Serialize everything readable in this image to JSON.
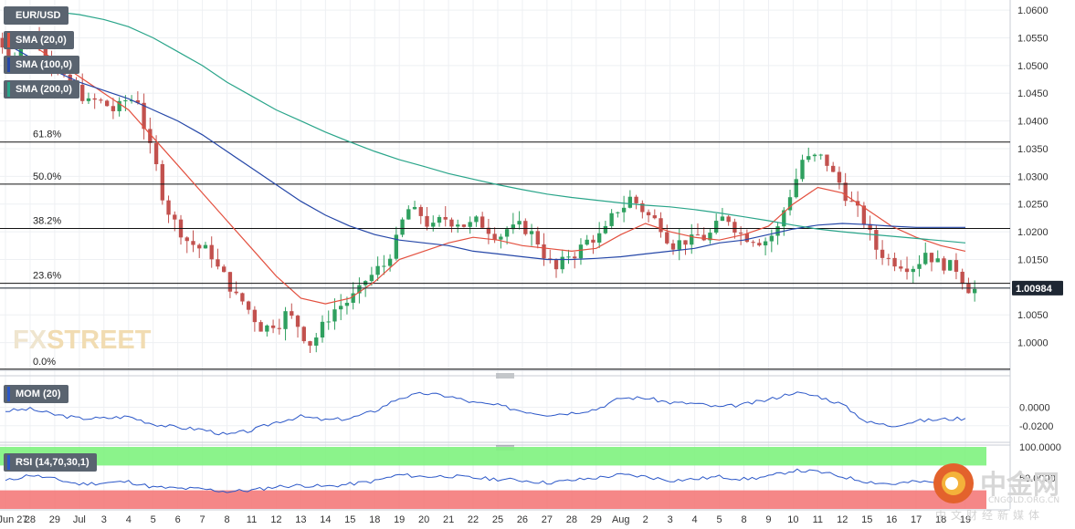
{
  "symbol": "EUR/USD",
  "indicators": {
    "sma20": "SMA (20,0)",
    "sma100": "SMA (100,0)",
    "sma200": "SMA (200,0)",
    "mom": "MOM (20)",
    "rsi": "RSI (14,70,30,1)"
  },
  "colors": {
    "up": "#2fa05f",
    "down": "#c2514e",
    "sma20": "#e3503f",
    "sma100": "#2547a8",
    "sma200": "#2aa58a",
    "mom_line": "#2b57c8",
    "rsi_line": "#2b57c8",
    "rsi_overbought_band": "#7ef27e",
    "rsi_oversold_band": "#f47a7a",
    "price_tag_bg": "#1e2733",
    "fib_line": "#111111"
  },
  "watermark": {
    "brand_a": "FX",
    "brand_b": "STREET",
    "cn_brand": "中金网",
    "cn_sub": "中文财经新媒体",
    "cn_url": "CNGOLD.ORG.CN"
  },
  "chart_data": [
    {
      "type": "candlestick",
      "title": "EUR/USD",
      "x_tick_labels": [
        "Jun 27",
        "28",
        "29",
        "Jul",
        "3",
        "4",
        "5",
        "6",
        "7",
        "8",
        "11",
        "12",
        "13",
        "14",
        "15",
        "18",
        "19",
        "20",
        "21",
        "22",
        "25",
        "26",
        "27",
        "28",
        "29",
        "Aug",
        "2",
        "3",
        "4",
        "5",
        "8",
        "9",
        "10",
        "11",
        "12",
        "15",
        "16",
        "17",
        "18",
        "19"
      ],
      "y_tick_labels": [
        "1.0600",
        "1.0550",
        "1.0500",
        "1.0450",
        "1.0400",
        "1.0350",
        "1.0300",
        "1.0250",
        "1.0200",
        "1.0150",
        "1.0100",
        "1.0050",
        "1.0000"
      ],
      "ylim": [
        0.995,
        1.0615
      ],
      "last_price": "1.00984",
      "fibonacci": [
        {
          "label": "61.8%",
          "value": 1.0362
        },
        {
          "label": "50.0%",
          "value": 1.0286
        },
        {
          "label": "38.2%",
          "value": 1.0206
        },
        {
          "label": "23.6%",
          "value": 1.0107
        },
        {
          "label": "0.0%",
          "value": 0.9952
        }
      ],
      "close_by_session": [
        1.052,
        1.056,
        1.047,
        1.043,
        1.042,
        1.044,
        1.027,
        1.0185,
        1.016,
        1.008,
        1.003,
        1.005,
        1.0,
        1.006,
        1.009,
        1.014,
        1.024,
        1.0205,
        1.022,
        1.0215,
        1.0205,
        1.0195,
        1.013,
        1.017,
        1.02,
        1.026,
        1.022,
        1.018,
        1.019,
        1.0225,
        1.019,
        1.0205,
        1.033,
        1.0325,
        1.025,
        1.017,
        1.0145,
        1.0165,
        1.0135,
        1.0095
      ],
      "series": [
        {
          "name": "SMA (20,0)",
          "values": [
            1.056,
            1.054,
            1.051,
            1.048,
            1.045,
            1.042,
            1.037,
            1.032,
            1.027,
            1.022,
            1.017,
            1.012,
            1.008,
            1.007,
            1.008,
            1.011,
            1.015,
            1.0165,
            1.018,
            1.019,
            1.0185,
            1.0175,
            1.017,
            1.0165,
            1.017,
            1.0195,
            1.0215,
            1.02,
            1.019,
            1.0185,
            1.0195,
            1.021,
            1.025,
            1.028,
            1.027,
            1.024,
            1.021,
            1.019,
            1.0175,
            1.0165
          ]
        },
        {
          "name": "SMA (100,0)",
          "values": [
            1.054,
            1.0515,
            1.049,
            1.047,
            1.0455,
            1.044,
            1.042,
            1.04,
            1.0375,
            1.0345,
            1.0315,
            1.0285,
            1.0255,
            1.023,
            1.021,
            1.0195,
            1.0185,
            1.018,
            1.0175,
            1.0165,
            1.016,
            1.0155,
            1.015,
            1.015,
            1.0152,
            1.0155,
            1.016,
            1.0165,
            1.017,
            1.018,
            1.0185,
            1.0195,
            1.0205,
            1.0212,
            1.0215,
            1.0213,
            1.021,
            1.0208,
            1.0208,
            1.0208
          ]
        },
        {
          "name": "SMA (200,0)",
          "values": [
            1.0602,
            1.06,
            1.0597,
            1.0592,
            1.0583,
            1.057,
            1.055,
            1.0525,
            1.05,
            1.047,
            1.0445,
            1.042,
            1.04,
            1.038,
            1.0362,
            1.0345,
            1.033,
            1.0318,
            1.0305,
            1.0295,
            1.0285,
            1.0276,
            1.0268,
            1.0262,
            1.0257,
            1.0252,
            1.0248,
            1.0245,
            1.024,
            1.0234,
            1.0227,
            1.022,
            1.0212,
            1.0205,
            1.02,
            1.0196,
            1.0192,
            1.0188,
            1.0184,
            1.018
          ]
        }
      ]
    },
    {
      "type": "line",
      "title": "MOM (20)",
      "y_tick_labels": [
        "0.0000",
        "-0.0200"
      ],
      "ylim": [
        -0.035,
        0.032
      ],
      "series": [
        {
          "name": "MOM (20)",
          "values": [
            -0.004,
            -0.002,
            -0.008,
            -0.012,
            -0.012,
            -0.01,
            -0.018,
            -0.022,
            -0.024,
            -0.03,
            -0.025,
            -0.016,
            -0.01,
            -0.014,
            -0.012,
            -0.004,
            0.01,
            0.015,
            0.012,
            0.005,
            0.002,
            -0.004,
            -0.008,
            -0.006,
            -0.002,
            0.01,
            0.01,
            0.005,
            0.004,
            0.0,
            0.003,
            0.008,
            0.016,
            0.012,
            0.003,
            -0.016,
            -0.02,
            -0.015,
            -0.013,
            -0.012
          ]
        }
      ]
    },
    {
      "type": "line",
      "title": "RSI (14,70,30,1)",
      "y_tick_labels": [
        "100.0000",
        "50.0000"
      ],
      "ylim": [
        0,
        100
      ],
      "bands": [
        {
          "from": 70,
          "to": 100,
          "label": "overbought"
        },
        {
          "from": 0,
          "to": 30,
          "label": "oversold"
        }
      ],
      "series": [
        {
          "name": "RSI (14,70,30,1)",
          "values": [
            45,
            55,
            48,
            40,
            42,
            44,
            35,
            33,
            32,
            28,
            30,
            36,
            38,
            36,
            40,
            45,
            55,
            52,
            53,
            50,
            48,
            46,
            42,
            46,
            50,
            55,
            52,
            46,
            48,
            52,
            48,
            52,
            62,
            60,
            52,
            44,
            40,
            44,
            42,
            36
          ]
        }
      ]
    }
  ]
}
